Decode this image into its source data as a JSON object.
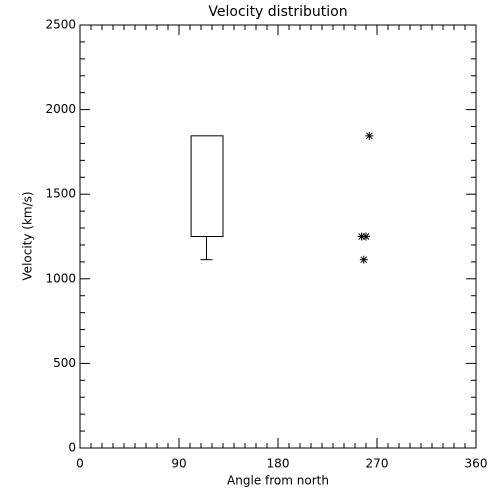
{
  "chart_data": {
    "type": "box",
    "title": "Velocity distribution",
    "x_label": "Angle from north",
    "y_label": "Velocity (km/s)",
    "xlim": [
      0,
      360
    ],
    "xticks": [
      0,
      90,
      180,
      270,
      360
    ],
    "ylim": [
      0,
      2500
    ],
    "yticks": [
      0,
      500,
      1000,
      1500,
      2000,
      2500
    ],
    "color": "#000000",
    "box": {
      "x_left": 101,
      "x_right": 130,
      "q1": 1250,
      "q3": 1845,
      "whisker_low": 1113,
      "whisker_x": 115
    },
    "points": {
      "x": [
        263,
        256,
        260,
        258
      ],
      "y": [
        1845,
        1250,
        1250,
        1113
      ]
    }
  }
}
